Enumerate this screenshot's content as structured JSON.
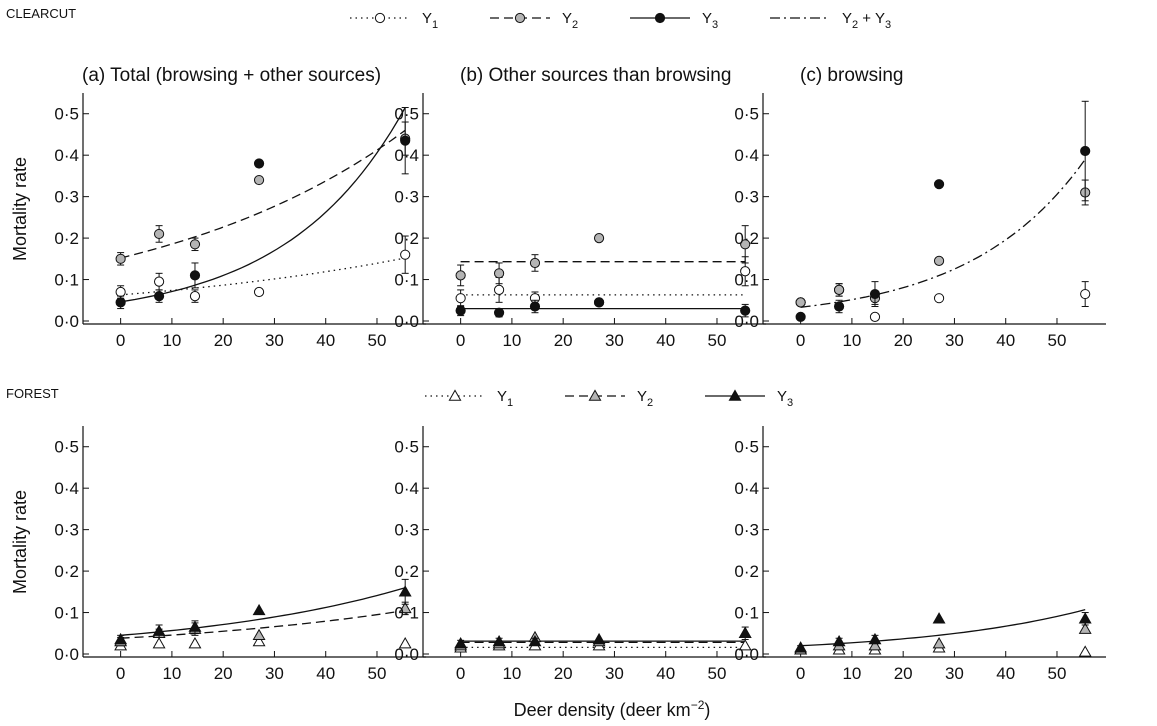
{
  "sections": [
    {
      "label": "CLEARCUT",
      "legend": [
        {
          "label": "Y",
          "sub": "1",
          "suffix": "",
          "line": "dotted",
          "marker": "circle-open"
        },
        {
          "label": "Y",
          "sub": "2",
          "suffix": "",
          "line": "dashed",
          "marker": "circle-grey"
        },
        {
          "label": "Y",
          "sub": "3",
          "suffix": "",
          "line": "solid",
          "marker": "circle-black"
        },
        {
          "label": "Y",
          "sub": "2",
          "suffix": " + Y",
          "sub2": "3",
          "line": "dashdot",
          "marker": "none"
        }
      ]
    },
    {
      "label": "FOREST",
      "legend": [
        {
          "label": "Y",
          "sub": "1",
          "suffix": "",
          "line": "dotted",
          "marker": "triangle-open"
        },
        {
          "label": "Y",
          "sub": "2",
          "suffix": "",
          "line": "dashed",
          "marker": "triangle-grey"
        },
        {
          "label": "Y",
          "sub": "3",
          "suffix": "",
          "line": "solid",
          "marker": "triangle-black"
        }
      ]
    }
  ],
  "axes": {
    "ylabel": "Mortality rate",
    "xlabel_main": "Deer density (deer km",
    "xlabel_sup": "−2",
    "xlabel_end": ")",
    "xlim": [
      -5,
      58
    ],
    "ylim": [
      0,
      0.55
    ],
    "xticks": [
      0,
      10,
      20,
      30,
      40,
      50
    ],
    "yticks": [
      0,
      0.1,
      0.2,
      0.3,
      0.4,
      0.5
    ],
    "ytick_labels": [
      "0·0",
      "0·1",
      "0·2",
      "0·3",
      "0·4",
      "0·5"
    ]
  },
  "chart_data": [
    {
      "type": "scatter",
      "section": "CLEARCUT",
      "title": "(a) Total (browsing + other sources)",
      "series": [
        {
          "name": "Y1",
          "marker": "circle-open",
          "x": [
            0,
            7.5,
            14.5,
            27,
            55.5
          ],
          "y": [
            0.07,
            0.095,
            0.06,
            0.07,
            0.16
          ],
          "err": [
            0.015,
            0.02,
            0.015,
            0,
            0.045
          ]
        },
        {
          "name": "Y2",
          "marker": "circle-grey",
          "x": [
            0,
            7.5,
            14.5,
            27,
            55.5
          ],
          "y": [
            0.15,
            0.21,
            0.185,
            0.34,
            0.44
          ],
          "err": [
            0.015,
            0.02,
            0.015,
            0,
            0.04
          ]
        },
        {
          "name": "Y3",
          "marker": "circle-black",
          "x": [
            0,
            7.5,
            14.5,
            27,
            55.5
          ],
          "y": [
            0.045,
            0.06,
            0.11,
            0.38,
            0.435
          ],
          "err": [
            0.015,
            0.015,
            0.03,
            0,
            0.08
          ]
        }
      ],
      "fits": [
        {
          "series": "Y1",
          "style": "dotted",
          "x": [
            0,
            55.5
          ],
          "y": [
            0.063,
            0.152
          ]
        },
        {
          "series": "Y2",
          "style": "dashed",
          "x": [
            0,
            55.5
          ],
          "y": [
            0.152,
            0.46
          ]
        },
        {
          "series": "Y3",
          "style": "solid",
          "x": [
            0,
            55.5
          ],
          "y": [
            0.046,
            0.515
          ]
        }
      ]
    },
    {
      "type": "scatter",
      "section": "CLEARCUT",
      "title": "(b) Other sources than browsing",
      "series": [
        {
          "name": "Y1",
          "marker": "circle-open",
          "x": [
            0,
            7.5,
            14.5,
            27,
            55.5
          ],
          "y": [
            0.055,
            0.075,
            0.055,
            0.045,
            0.12
          ],
          "err": [
            0.02,
            0.03,
            0.015,
            0,
            0.035
          ]
        },
        {
          "name": "Y2",
          "marker": "circle-grey",
          "x": [
            0,
            7.5,
            14.5,
            27,
            55.5
          ],
          "y": [
            0.11,
            0.115,
            0.14,
            0.2,
            0.185
          ],
          "err": [
            0.025,
            0.025,
            0.02,
            0,
            0.045
          ]
        },
        {
          "name": "Y3",
          "marker": "circle-black",
          "x": [
            0,
            7.5,
            14.5,
            27,
            55.5
          ],
          "y": [
            0.025,
            0.02,
            0.035,
            0.045,
            0.025
          ],
          "err": [
            0.012,
            0.01,
            0.015,
            0,
            0.015
          ]
        }
      ],
      "fits": [
        {
          "series": "Y1",
          "style": "dotted",
          "x": [
            0,
            55.5
          ],
          "y": [
            0.063,
            0.063
          ]
        },
        {
          "series": "Y2",
          "style": "dashed",
          "x": [
            0,
            55.5
          ],
          "y": [
            0.143,
            0.143
          ]
        },
        {
          "series": "Y3",
          "style": "solid",
          "x": [
            0,
            55.5
          ],
          "y": [
            0.03,
            0.03
          ]
        }
      ]
    },
    {
      "type": "scatter",
      "section": "CLEARCUT",
      "title": "(c)  browsing",
      "series": [
        {
          "name": "Y1",
          "marker": "circle-open",
          "x": [
            0,
            7.5,
            14.5,
            27,
            55.5
          ],
          "y": [
            0.045,
            0.075,
            0.01,
            0.055,
            0.065
          ],
          "err": [
            0,
            0.015,
            0,
            0,
            0.03
          ]
        },
        {
          "name": "Y2",
          "marker": "circle-grey",
          "x": [
            0,
            7.5,
            14.5,
            27,
            55.5
          ],
          "y": [
            0.045,
            0.075,
            0.055,
            0.145,
            0.31
          ],
          "err": [
            0,
            0.015,
            0.015,
            0,
            0.03
          ]
        },
        {
          "name": "Y3",
          "marker": "circle-black",
          "x": [
            0,
            7.5,
            14.5,
            27,
            55.5
          ],
          "y": [
            0.01,
            0.035,
            0.065,
            0.33,
            0.41
          ],
          "err": [
            0.005,
            0.015,
            0.03,
            0,
            0.12
          ]
        }
      ],
      "fits": [
        {
          "series": "Y2 + Y3",
          "style": "dashdot",
          "x": [
            0,
            55.5
          ],
          "y": [
            0.033,
            0.39
          ]
        }
      ]
    },
    {
      "type": "scatter",
      "section": "FOREST",
      "title": "",
      "series": [
        {
          "name": "Y1",
          "marker": "triangle-open",
          "x": [
            0,
            7.5,
            14.5,
            27,
            55.5
          ],
          "y": [
            0.02,
            0.025,
            0.025,
            0.03,
            0.025
          ],
          "err": [
            0,
            0,
            0,
            0,
            0
          ]
        },
        {
          "name": "Y2",
          "marker": "triangle-grey",
          "x": [
            0,
            7.5,
            14.5,
            27,
            55.5
          ],
          "y": [
            0.03,
            0.05,
            0.06,
            0.045,
            0.11
          ],
          "err": [
            0.01,
            0.01,
            0.015,
            0,
            0.015
          ]
        },
        {
          "name": "Y3",
          "marker": "triangle-black",
          "x": [
            0,
            7.5,
            14.5,
            27,
            55.5
          ],
          "y": [
            0.035,
            0.055,
            0.065,
            0.105,
            0.15
          ],
          "err": [
            0.01,
            0.015,
            0.015,
            0,
            0.03
          ]
        }
      ],
      "fits": [
        {
          "series": "Y2",
          "style": "dashed",
          "x": [
            0,
            55.5
          ],
          "y": [
            0.038,
            0.105
          ]
        },
        {
          "series": "Y3",
          "style": "solid",
          "x": [
            0,
            55.5
          ],
          "y": [
            0.045,
            0.16
          ]
        }
      ]
    },
    {
      "type": "scatter",
      "section": "FOREST",
      "title": "",
      "series": [
        {
          "name": "Y1",
          "marker": "triangle-open",
          "x": [
            0,
            7.5,
            14.5,
            27,
            55.5
          ],
          "y": [
            0.015,
            0.02,
            0.02,
            0.02,
            0.02
          ],
          "err": [
            0,
            0,
            0,
            0,
            0
          ]
        },
        {
          "name": "Y2",
          "marker": "triangle-grey",
          "x": [
            0,
            7.5,
            14.5,
            27,
            55.5
          ],
          "y": [
            0.02,
            0.025,
            0.04,
            0.03,
            0.05
          ],
          "err": [
            0,
            0,
            0,
            0,
            0
          ]
        },
        {
          "name": "Y3",
          "marker": "triangle-black",
          "x": [
            0,
            7.5,
            14.5,
            27,
            55.5
          ],
          "y": [
            0.025,
            0.03,
            0.03,
            0.035,
            0.05
          ],
          "err": [
            0.008,
            0.008,
            0.008,
            0,
            0.015
          ]
        }
      ],
      "fits": [
        {
          "series": "Y1",
          "style": "dotted",
          "x": [
            0,
            55.5
          ],
          "y": [
            0.016,
            0.016
          ]
        },
        {
          "series": "Y2",
          "style": "dashed",
          "x": [
            0,
            55.5
          ],
          "y": [
            0.028,
            0.028
          ]
        },
        {
          "series": "Y3",
          "style": "solid",
          "x": [
            0,
            55.5
          ],
          "y": [
            0.031,
            0.031
          ]
        }
      ]
    },
    {
      "type": "scatter",
      "section": "FOREST",
      "title": "",
      "series": [
        {
          "name": "Y1",
          "marker": "triangle-open",
          "x": [
            0,
            7.5,
            14.5,
            27,
            55.5
          ],
          "y": [
            0.01,
            0.01,
            0.01,
            0.015,
            0.005
          ],
          "err": [
            0,
            0,
            0,
            0,
            0
          ]
        },
        {
          "name": "Y2",
          "marker": "triangle-grey",
          "x": [
            0,
            7.5,
            14.5,
            27,
            55.5
          ],
          "y": [
            0.01,
            0.02,
            0.02,
            0.025,
            0.06
          ],
          "err": [
            0,
            0,
            0,
            0,
            0
          ]
        },
        {
          "name": "Y3",
          "marker": "triangle-black",
          "x": [
            0,
            7.5,
            14.5,
            27,
            55.5
          ],
          "y": [
            0.015,
            0.03,
            0.035,
            0.085,
            0.085
          ],
          "err": [
            0.005,
            0.008,
            0.01,
            0,
            0.015
          ]
        }
      ],
      "fits": [
        {
          "series": "Y3",
          "style": "solid",
          "x": [
            0,
            55.5
          ],
          "y": [
            0.02,
            0.107
          ]
        }
      ]
    }
  ]
}
